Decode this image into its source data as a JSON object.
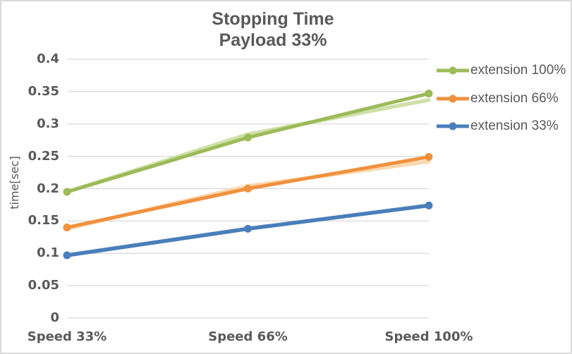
{
  "chart_data": {
    "type": "line",
    "title": "Stopping Time",
    "subtitle": "Payload 33%",
    "ylabel": "time[sec]",
    "categories": [
      "Speed 33%",
      "Speed 66%",
      "Speed 100%"
    ],
    "ylim": [
      0,
      0.4
    ],
    "ytick_labels": [
      "0",
      "0.05",
      "0.1",
      "0.15",
      "0.2",
      "0.25",
      "0.3",
      "0.35",
      "0.4"
    ],
    "ytick_values": [
      0,
      0.05,
      0.1,
      0.15,
      0.2,
      0.25,
      0.3,
      0.35,
      0.4
    ],
    "grid": true,
    "legend_position": "right",
    "series": [
      {
        "name": "extension 100%",
        "color": "#9CBB59",
        "shadow_color": "#CFE0A8",
        "values": [
          0.195,
          0.279,
          0.347
        ],
        "shadow_values": [
          0.195,
          0.284,
          0.337
        ]
      },
      {
        "name": "extension 66%",
        "color": "#F0913E",
        "shadow_color": "#FBD8AF",
        "values": [
          0.14,
          0.2,
          0.249
        ],
        "shadow_values": [
          0.138,
          0.204,
          0.242
        ]
      },
      {
        "name": "extension 33%",
        "color": "#4A7EBB",
        "shadow_color": "#4A7EBB",
        "values": [
          0.097,
          0.138,
          0.174
        ],
        "shadow_values": [
          0.097,
          0.138,
          0.174
        ]
      }
    ],
    "colors": {
      "text": "#595959",
      "grid": "#D9D9D9",
      "border": "#D9D9D9",
      "background": "#FFFFFF"
    }
  }
}
